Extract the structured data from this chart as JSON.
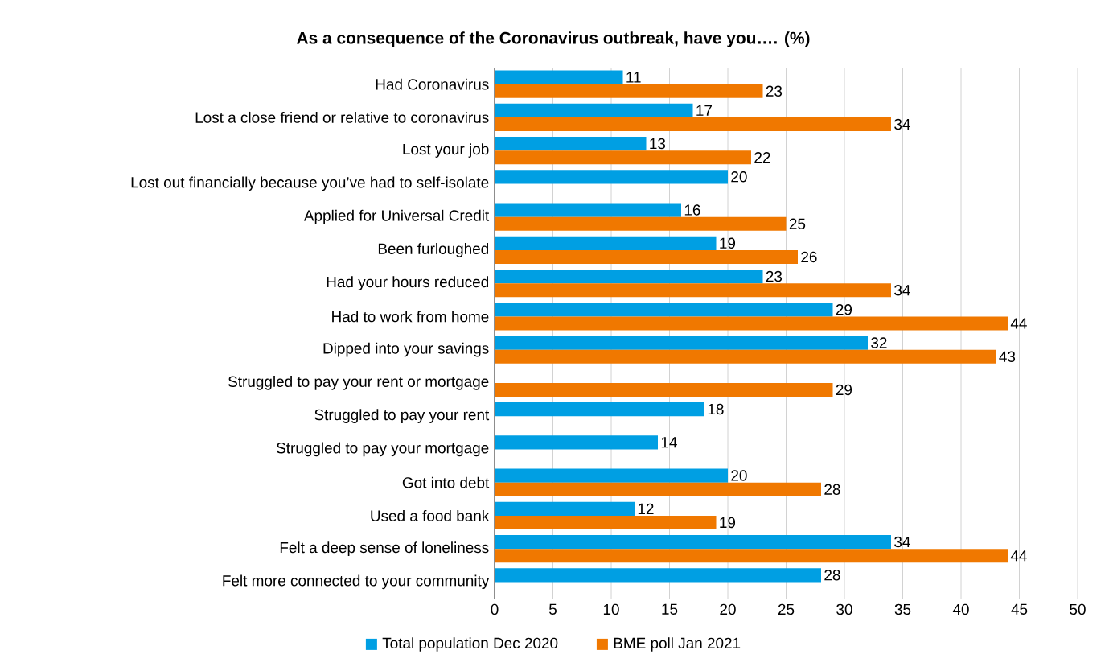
{
  "chart_data": {
    "type": "bar",
    "orientation": "horizontal",
    "title": "As a consequence of the Coronavirus outbreak, have you…. (%)",
    "categories": [
      "Had Coronavirus",
      "Lost a close friend or relative to coronavirus",
      "Lost your job",
      "Lost out financially because you’ve had to self-isolate",
      "Applied for Universal Credit",
      "Been furloughed",
      "Had your hours reduced",
      "Had to work from home",
      "Dipped into your savings",
      "Struggled to pay your rent or mortgage",
      "Struggled to pay your rent",
      "Struggled to pay your mortgage",
      "Got into debt",
      "Used a food bank",
      "Felt a deep sense of loneliness",
      "Felt more connected to your community"
    ],
    "series": [
      {
        "name": "Total population Dec 2020",
        "color": "#009fe3",
        "values": [
          11,
          17,
          13,
          20,
          16,
          19,
          23,
          29,
          32,
          null,
          18,
          14,
          20,
          12,
          34,
          28
        ]
      },
      {
        "name": "BME poll Jan 2021",
        "color": "#f07800",
        "values": [
          23,
          34,
          22,
          null,
          25,
          26,
          34,
          44,
          43,
          29,
          null,
          null,
          28,
          19,
          44,
          null
        ]
      }
    ],
    "xlim": [
      0,
      50
    ],
    "xticks": [
      0,
      5,
      10,
      15,
      20,
      25,
      30,
      35,
      40,
      45,
      50
    ],
    "data_labels": true,
    "grid": "x",
    "legend": "bottom"
  }
}
